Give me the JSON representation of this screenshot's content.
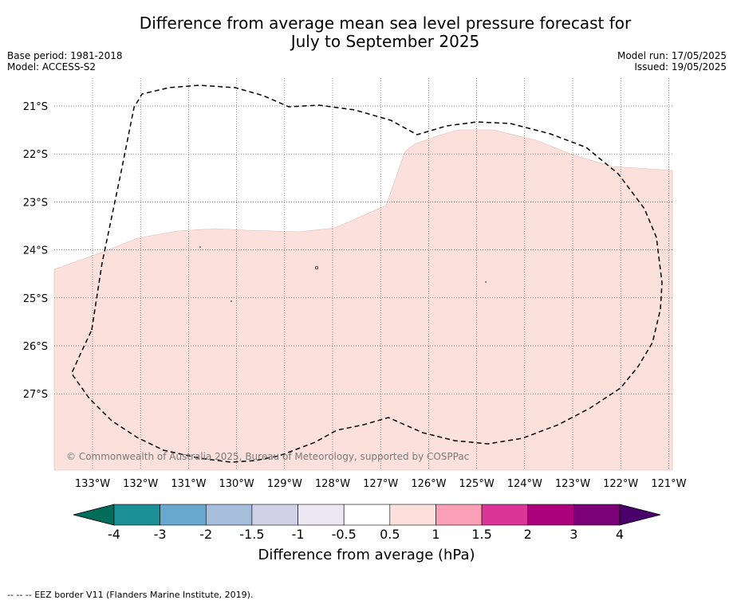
{
  "title_line1": "Difference from average mean sea level pressure forecast for",
  "title_line2": "July to September 2025",
  "meta_left": {
    "base_period": "Base period: 1981-2018",
    "model": "Model: ACCESS-S2"
  },
  "meta_right": {
    "model_run": "Model run: 17/05/2025",
    "issued": "Issued: 19/05/2025"
  },
  "copyright": "© Commonwealth of Australia 2025, Bureau of Meteorology, supported by COSPPac",
  "footer": "--  --  -- EEZ border V11 (Flanders Marine Institute, 2019).",
  "colorbar": {
    "label": "Difference from average (hPa)",
    "ticks": [
      "-4",
      "-3",
      "-2",
      "-1.5",
      "-1",
      "-0.5",
      "0.5",
      "1",
      "1.5",
      "2",
      "3",
      "4"
    ],
    "colors": [
      "#006d5b",
      "#1b9196",
      "#69a9cf",
      "#a6bddb",
      "#d0d1e6",
      "#ece7f2",
      "#ffffff",
      "#fde0dc",
      "#fa9fb5",
      "#dd3497",
      "#ae017e",
      "#7a0177",
      "#49006a"
    ]
  },
  "map_data": {
    "lon_labels": [
      "133°W",
      "132°W",
      "131°W",
      "130°W",
      "129°W",
      "128°W",
      "127°W",
      "126°W",
      "125°W",
      "124°W",
      "123°W",
      "122°W",
      "121°W"
    ],
    "lat_labels": [
      "21°S",
      "22°S",
      "23°S",
      "24°S",
      "25°S",
      "26°S",
      "27°S"
    ],
    "shaded_category": "0.5 to 1",
    "shaded_color": "#fce0db"
  }
}
